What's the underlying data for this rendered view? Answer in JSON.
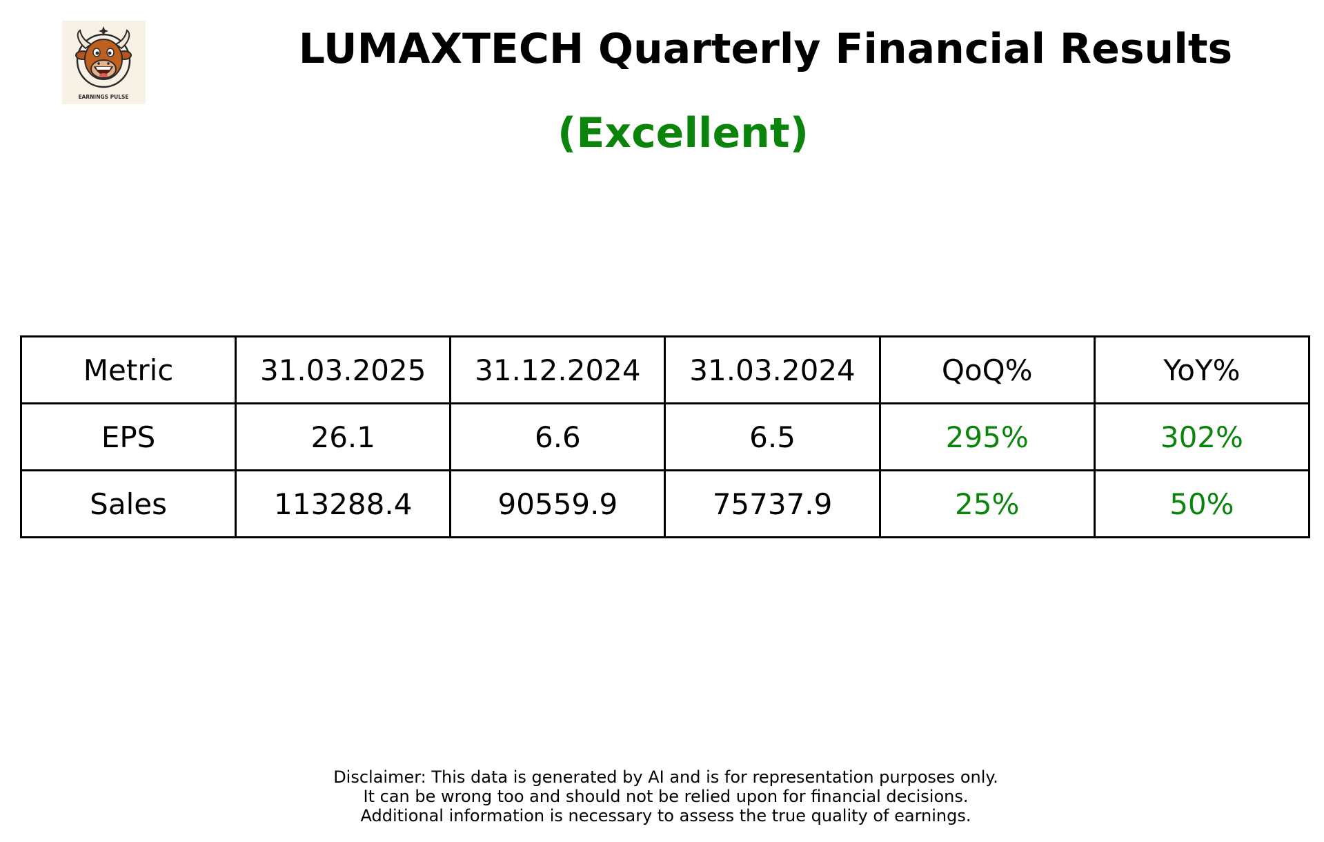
{
  "logo": {
    "icon": "bull-mascot-icon",
    "caption": "EARNINGS PULSE"
  },
  "title": "LUMAXTECH Quarterly Financial Results",
  "rating": "(Excellent)",
  "colors": {
    "positive": "#0a840a",
    "text": "#000000",
    "logo_background": "#f7f1e6"
  },
  "table": {
    "headers": [
      "Metric",
      "31.03.2025",
      "31.12.2024",
      "31.03.2024",
      "QoQ%",
      "YoY%"
    ],
    "rows": [
      [
        "EPS",
        "26.1",
        "6.6",
        "6.5",
        "295%",
        "302%"
      ],
      [
        "Sales",
        "113288.4",
        "90559.9",
        "75737.9",
        "25%",
        "50%"
      ]
    ]
  },
  "disclaimer": [
    "Disclaimer: This data is generated by AI and is for representation purposes only.",
    "It can be wrong too and should not be relied upon for financial decisions.",
    "Additional information is necessary to assess the true quality of earnings."
  ]
}
